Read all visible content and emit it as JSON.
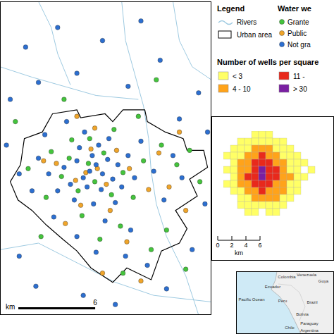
{
  "chart_data": [
    {
      "type": "scatter",
      "xlim": [
        0,
        16.5
      ],
      "ylim": [
        0,
        24
      ],
      "tick_labels": false,
      "series": [
        {
          "name": "Grante",
          "color": "#44c43c",
          "marker": "circle",
          "points": [
            [
              7.4,
              10.2
            ],
            [
              6.9,
              11.6
            ],
            [
              8.1,
              12.4
            ],
            [
              6.1,
              9.5
            ],
            [
              8.7,
              9.2
            ],
            [
              5.4,
              12.0
            ],
            [
              9.6,
              10.9
            ],
            [
              7.0,
              13.5
            ],
            [
              4.8,
              10.6
            ],
            [
              10.4,
              9.0
            ],
            [
              6.4,
              7.6
            ],
            [
              8.9,
              14.2
            ],
            [
              3.6,
              9.0
            ],
            [
              11.2,
              11.8
            ],
            [
              5.6,
              13.4
            ],
            [
              12.6,
              13.0
            ],
            [
              9.4,
              6.8
            ],
            [
              4.0,
              12.5
            ],
            [
              13.8,
              11.5
            ],
            [
              7.8,
              5.8
            ],
            [
              11.8,
              5.0
            ],
            [
              2.2,
              11.2
            ],
            [
              13.0,
              6.5
            ],
            [
              14.8,
              12.6
            ],
            [
              10.8,
              15.2
            ],
            [
              3.2,
              6.0
            ],
            [
              9.6,
              3.2
            ],
            [
              15.6,
              10.2
            ],
            [
              1.2,
              14.8
            ],
            [
              12.2,
              18.0
            ],
            [
              5.0,
              16.5
            ],
            [
              14.5,
              3.5
            ]
          ]
        },
        {
          "name": "Public",
          "color": "#f0a52a",
          "marker": "circle",
          "points": [
            [
              7.6,
              11.2
            ],
            [
              6.7,
              10.9
            ],
            [
              8.3,
              10.0
            ],
            [
              7.1,
              12.7
            ],
            [
              5.9,
              10.3
            ],
            [
              9.1,
              12.6
            ],
            [
              6.3,
              8.4
            ],
            [
              8.6,
              8.0
            ],
            [
              4.4,
              11.6
            ],
            [
              10.1,
              11.2
            ],
            [
              7.4,
              14.3
            ],
            [
              11.6,
              9.6
            ],
            [
              5.1,
              7.0
            ],
            [
              12.4,
              12.4
            ],
            [
              9.9,
              5.6
            ],
            [
              3.4,
              11.8
            ],
            [
              13.2,
              9.8
            ],
            [
              8.0,
              3.2
            ],
            [
              14.5,
              8.0
            ],
            [
              6.0,
              15.2
            ],
            [
              11.0,
              2.6
            ],
            [
              14.0,
              14.0
            ]
          ]
        },
        {
          "name": "Not gra",
          "color": "#2c6fd1",
          "marker": "circle",
          "points": [
            [
              7.0,
              11.0
            ],
            [
              7.5,
              11.5
            ],
            [
              8.0,
              10.8
            ],
            [
              6.5,
              10.5
            ],
            [
              7.2,
              12.2
            ],
            [
              8.4,
              11.9
            ],
            [
              6.8,
              9.8
            ],
            [
              7.9,
              9.6
            ],
            [
              6.0,
              11.8
            ],
            [
              8.8,
              10.4
            ],
            [
              5.5,
              10.0
            ],
            [
              9.2,
              11.5
            ],
            [
              6.2,
              12.8
            ],
            [
              7.7,
              13.0
            ],
            [
              5.0,
              11.3
            ],
            [
              9.5,
              9.8
            ],
            [
              4.5,
              9.5
            ],
            [
              8.5,
              13.5
            ],
            [
              5.8,
              8.8
            ],
            [
              7.3,
              8.5
            ],
            [
              10.0,
              12.2
            ],
            [
              3.8,
              10.8
            ],
            [
              9.0,
              8.6
            ],
            [
              6.6,
              14.0
            ],
            [
              10.5,
              10.5
            ],
            [
              3.0,
              12.0
            ],
            [
              11.0,
              13.3
            ],
            [
              4.2,
              7.5
            ],
            [
              8.2,
              7.2
            ],
            [
              12.0,
              11.0
            ],
            [
              2.5,
              9.5
            ],
            [
              10.2,
              6.5
            ],
            [
              6.0,
              6.0
            ],
            [
              12.8,
              8.8
            ],
            [
              13.5,
              12.2
            ],
            [
              9.8,
              4.5
            ],
            [
              7.5,
              4.8
            ],
            [
              3.5,
              13.8
            ],
            [
              5.2,
              14.8
            ],
            [
              11.5,
              3.8
            ],
            [
              14.2,
              10.5
            ],
            [
              1.5,
              10.8
            ],
            [
              2.0,
              20.5
            ],
            [
              4.5,
              22.0
            ],
            [
              8.0,
              21.0
            ],
            [
              12.5,
              19.5
            ],
            [
              15.5,
              17.0
            ],
            [
              0.8,
              16.5
            ],
            [
              3.0,
              17.8
            ],
            [
              10.0,
              17.5
            ],
            [
              14.0,
              15.0
            ],
            [
              16.0,
              8.5
            ],
            [
              15.0,
              5.0
            ],
            [
              13.0,
              2.0
            ],
            [
              1.5,
              4.5
            ],
            [
              6.5,
              1.5
            ],
            [
              0.5,
              13.0
            ],
            [
              16.2,
              14.0
            ],
            [
              11.0,
              22.5
            ],
            [
              6.0,
              18.5
            ],
            [
              2.8,
              2.2
            ],
            [
              9.0,
              0.8
            ]
          ]
        }
      ],
      "rivers": {
        "name": "Rivers",
        "color": "#9ecae1",
        "lines": [
          [
            [
              9.5,
              24
            ],
            [
              9.8,
              21
            ],
            [
              10.5,
              18.5
            ],
            [
              11.2,
              16
            ],
            [
              11.6,
              13.5
            ],
            [
              11.8,
              11
            ],
            [
              12.2,
              8.5
            ],
            [
              13.0,
              6
            ],
            [
              14.5,
              3
            ],
            [
              15.5,
              0
            ]
          ],
          [
            [
              0,
              19
            ],
            [
              2.5,
              18.2
            ],
            [
              5,
              17.5
            ],
            [
              7.5,
              16.8
            ],
            [
              10.8,
              16.5
            ]
          ],
          [
            [
              0,
              5
            ],
            [
              3,
              5.5
            ],
            [
              6,
              4
            ],
            [
              9,
              2.5
            ],
            [
              12,
              1.5
            ],
            [
              16.5,
              1
            ]
          ],
          [
            [
              13.5,
              24
            ],
            [
              14,
              21
            ],
            [
              15,
              19
            ],
            [
              16.5,
              18
            ]
          ],
          [
            [
              3,
              24
            ],
            [
              4,
              22
            ],
            [
              4.5,
              20
            ],
            [
              5.5,
              17.6
            ]
          ]
        ]
      },
      "urban_area": {
        "name": "Urban area",
        "color": "#000000",
        "boundary": [
          [
            1.6,
            11.5
          ],
          [
            1.9,
            13.5
          ],
          [
            3.3,
            14.0
          ],
          [
            4.1,
            15.4
          ],
          [
            6.0,
            15.7
          ],
          [
            6.3,
            15.1
          ],
          [
            8.2,
            15.4
          ],
          [
            8.8,
            14.8
          ],
          [
            9.6,
            15.7
          ],
          [
            11.3,
            15.7
          ],
          [
            11.5,
            14.8
          ],
          [
            12.9,
            14.0
          ],
          [
            14.3,
            13.5
          ],
          [
            14.6,
            12.6
          ],
          [
            15.9,
            12.6
          ],
          [
            16.2,
            11.3
          ],
          [
            14.8,
            10.4
          ],
          [
            15.4,
            9.1
          ],
          [
            13.7,
            8.0
          ],
          [
            14.6,
            6.6
          ],
          [
            14.0,
            5.5
          ],
          [
            12.6,
            4.9
          ],
          [
            11.8,
            2.7
          ],
          [
            9.9,
            3.6
          ],
          [
            8.8,
            2.5
          ],
          [
            7.1,
            3.6
          ],
          [
            6.0,
            4.9
          ],
          [
            4.9,
            5.8
          ],
          [
            3.6,
            6.9
          ],
          [
            2.5,
            8.0
          ],
          [
            1.4,
            8.8
          ],
          [
            0.8,
            10.2
          ],
          [
            1.6,
            11.5
          ]
        ]
      },
      "scale_bar": {
        "ticks": [
          6
        ],
        "unit": "km"
      }
    },
    {
      "type": "heatmap",
      "title": "Number of wells per square",
      "tick_labels": false,
      "classes": [
        {
          "label": "< 3",
          "min": 0,
          "max": 3,
          "color": "#ffff66"
        },
        {
          "label": "4 - 10",
          "min": 4,
          "max": 10,
          "color": "#ffa31a"
        },
        {
          "label": "11 -",
          "min": 11,
          "max": 30,
          "color": "#e8291c"
        },
        {
          "label": "> 30",
          "min": 31,
          "max": null,
          "color": "#7a1fa2"
        }
      ],
      "counts": [
        [
          null,
          null,
          null,
          null,
          1,
          2,
          1,
          null,
          null,
          null,
          null,
          null,
          null,
          null
        ],
        [
          null,
          null,
          1,
          2,
          2,
          3,
          2,
          1,
          2,
          null,
          null,
          null,
          null,
          null
        ],
        [
          null,
          1,
          2,
          3,
          5,
          6,
          4,
          3,
          2,
          1,
          null,
          null,
          null,
          null
        ],
        [
          1,
          2,
          3,
          6,
          9,
          12,
          8,
          6,
          3,
          2,
          1,
          null,
          null,
          null
        ],
        [
          null,
          2,
          4,
          8,
          14,
          20,
          15,
          9,
          5,
          3,
          1,
          1,
          null,
          null
        ],
        [
          1,
          3,
          5,
          10,
          18,
          35,
          24,
          12,
          6,
          3,
          2,
          null,
          1,
          null
        ],
        [
          null,
          2,
          6,
          12,
          22,
          40,
          28,
          14,
          7,
          4,
          2,
          1,
          null,
          null
        ],
        [
          1,
          2,
          4,
          9,
          15,
          24,
          18,
          10,
          5,
          3,
          1,
          null,
          null,
          null
        ],
        [
          null,
          1,
          3,
          6,
          9,
          12,
          10,
          7,
          4,
          2,
          1,
          null,
          null,
          null
        ],
        [
          null,
          null,
          2,
          3,
          5,
          7,
          5,
          4,
          2,
          1,
          null,
          null,
          null,
          null
        ],
        [
          null,
          null,
          1,
          2,
          2,
          3,
          3,
          2,
          1,
          null,
          null,
          null,
          null,
          null
        ],
        [
          null,
          null,
          null,
          1,
          1,
          null,
          2,
          1,
          null,
          null,
          null,
          null,
          null,
          null
        ]
      ],
      "scale_bar": {
        "ticks": [
          0,
          2,
          4,
          6
        ],
        "unit": "km"
      }
    }
  ],
  "legend": {
    "title": "Legend",
    "wells_title": "Water we"
  },
  "location_map": {
    "labels": [
      "Colombia",
      "Venezuela",
      "Guya",
      "Ecuador",
      "Peru",
      "Brazil",
      "Pacific Ocean",
      "Bolivia",
      "Paraguay",
      "Argentina",
      "Chile"
    ]
  }
}
